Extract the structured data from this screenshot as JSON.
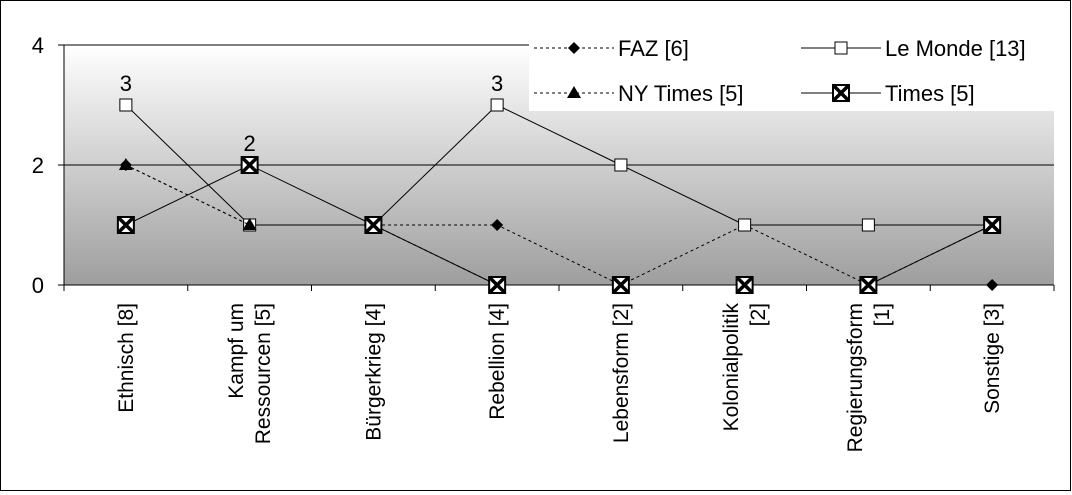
{
  "chart_data": {
    "type": "line",
    "categories": [
      [
        "Ethnisch [8]"
      ],
      [
        "Kampf um",
        "Ressourcen [5]"
      ],
      [
        "Bürgerkrieg [4]"
      ],
      [
        "Rebellion [4]"
      ],
      [
        "Lebensform [2]"
      ],
      [
        "Kolonialpolitik",
        "[2]"
      ],
      [
        "Regierungsform",
        "[1]"
      ],
      [
        "Sonstige [3]"
      ]
    ],
    "ylim": [
      0,
      4
    ],
    "yticks": [
      0,
      2,
      4
    ],
    "ytick_labels": [
      "0",
      "2",
      "4"
    ],
    "grid": "horizontal",
    "legend_position": "top-right",
    "series": [
      {
        "name": "FAZ [6]",
        "marker": "diamond",
        "line": "dashed",
        "values": [
          2,
          1,
          1,
          1,
          0,
          1,
          0,
          0
        ]
      },
      {
        "name": "Le Monde [13]",
        "marker": "open-square",
        "line": "solid",
        "values": [
          3,
          1,
          1,
          3,
          2,
          1,
          1,
          1
        ]
      },
      {
        "name": "NY Times [5]",
        "marker": "triangle",
        "line": "dashed",
        "values": [
          2,
          1,
          1,
          0,
          0,
          0,
          0,
          1
        ]
      },
      {
        "name": "Times [5]",
        "marker": "x-square",
        "line": "solid",
        "values": [
          1,
          2,
          1,
          0,
          0,
          0,
          0,
          1
        ]
      }
    ],
    "annotations": [
      {
        "text": "3",
        "category": 0,
        "y": 3
      },
      {
        "text": "2",
        "category": 1,
        "y": 2
      },
      {
        "text": "3",
        "category": 3,
        "y": 3
      }
    ]
  }
}
